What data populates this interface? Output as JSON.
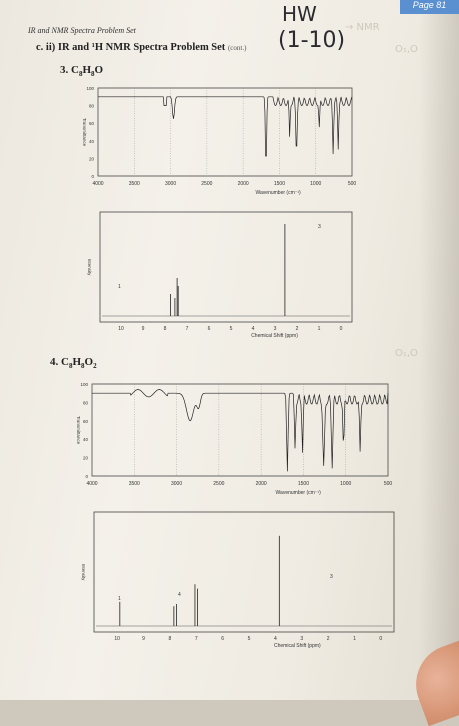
{
  "page_tag": "Page 81",
  "set_title": "IR and NMR Spectra Problem Set",
  "section_heading": "c. ii)  IR and ¹H NMR Spectra Problem Set",
  "section_cont": "(cont.)",
  "handwriting": {
    "hw": "HW",
    "range": "(1-10)"
  },
  "faint_text": {
    "bleed_top": "→ NMR",
    "bleed_mid": "O₁,O",
    "bleed_bot": "O₁,O"
  },
  "problems": [
    {
      "number": "3.",
      "formula_main": "C",
      "formula_parts": [
        {
          "el": "C",
          "n": "8"
        },
        {
          "el": "H",
          "n": "8"
        },
        {
          "el": "O",
          "n": ""
        }
      ],
      "ir": {
        "ylabel": "Transmittance",
        "yticks": [
          "100",
          "80",
          "60",
          "40",
          "20",
          "0"
        ],
        "xticks": [
          "4000",
          "3500",
          "3000",
          "2500",
          "2000",
          "1500",
          "1000",
          "500"
        ],
        "xlabel": "Wavenumber (cm⁻¹)"
      },
      "nmr": {
        "ylabel": "Intensity",
        "xticks": [
          "10",
          "9",
          "8",
          "7",
          "6",
          "5",
          "4",
          "3",
          "2",
          "1",
          "0"
        ],
        "xlabel": "Chemical Shift (ppm)",
        "peak_labels": [
          "1",
          "3"
        ],
        "peaks": [
          {
            "ppm": 7.75,
            "h": 0.22
          },
          {
            "ppm": 7.55,
            "h": 0.18
          },
          {
            "ppm": 7.45,
            "h": 0.38
          },
          {
            "ppm": 7.4,
            "h": 0.3
          },
          {
            "ppm": 2.55,
            "h": 0.92
          }
        ]
      }
    },
    {
      "number": "4.",
      "formula_parts": [
        {
          "el": "C",
          "n": "8"
        },
        {
          "el": "H",
          "n": "8"
        },
        {
          "el": "O",
          "n": "2"
        }
      ],
      "ir": {
        "ylabel": "Transmittance",
        "yticks": [
          "100",
          "80",
          "60",
          "40",
          "20",
          "0"
        ],
        "xticks": [
          "4000",
          "3500",
          "3000",
          "2500",
          "2000",
          "1500",
          "1000",
          "500"
        ],
        "xlabel": "Wavenumber (cm⁻¹)"
      },
      "nmr": {
        "ylabel": "Intensity",
        "xticks": [
          "10",
          "9",
          "8",
          "7",
          "6",
          "5",
          "4",
          "3",
          "2",
          "1",
          "0"
        ],
        "xlabel": "Chemical Shift (ppm)",
        "peak_labels": [
          "1",
          "4",
          "3"
        ],
        "peaks": [
          {
            "ppm": 9.9,
            "h": 0.22
          },
          {
            "ppm": 7.85,
            "h": 0.18
          },
          {
            "ppm": 7.75,
            "h": 0.2
          },
          {
            "ppm": 7.05,
            "h": 0.38
          },
          {
            "ppm": 6.95,
            "h": 0.34
          },
          {
            "ppm": 3.85,
            "h": 0.82
          }
        ]
      }
    }
  ]
}
